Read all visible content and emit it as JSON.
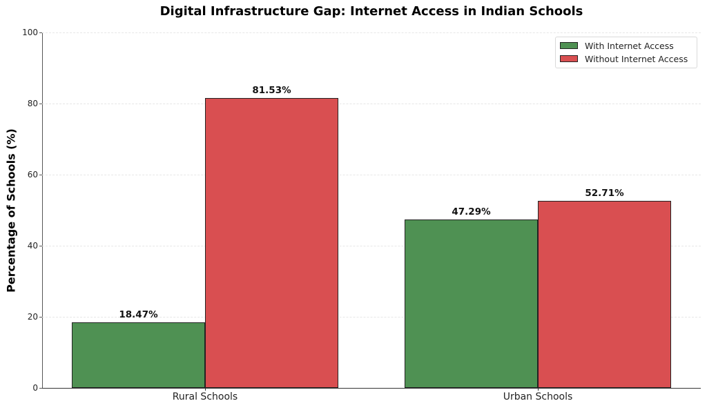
{
  "chart_data": {
    "type": "bar",
    "title": "Digital Infrastructure Gap: Internet Access in Indian Schools",
    "xlabel": "",
    "ylabel": "Percentage of Schools (%)",
    "ylim": [
      0,
      100
    ],
    "yticks": [
      0,
      20,
      40,
      60,
      80,
      100
    ],
    "grid": true,
    "legend_position": "upper right",
    "categories": [
      "Rural Schools",
      "Urban Schools"
    ],
    "series": [
      {
        "name": "With Internet Access",
        "color": "#4f9153",
        "values": [
          18.47,
          47.29
        ],
        "labels": [
          "18.47%",
          "47.29%"
        ]
      },
      {
        "name": "Without Internet Access",
        "color": "#d94f51",
        "values": [
          81.53,
          52.71
        ],
        "labels": [
          "81.53%",
          "52.71%"
        ]
      }
    ]
  }
}
